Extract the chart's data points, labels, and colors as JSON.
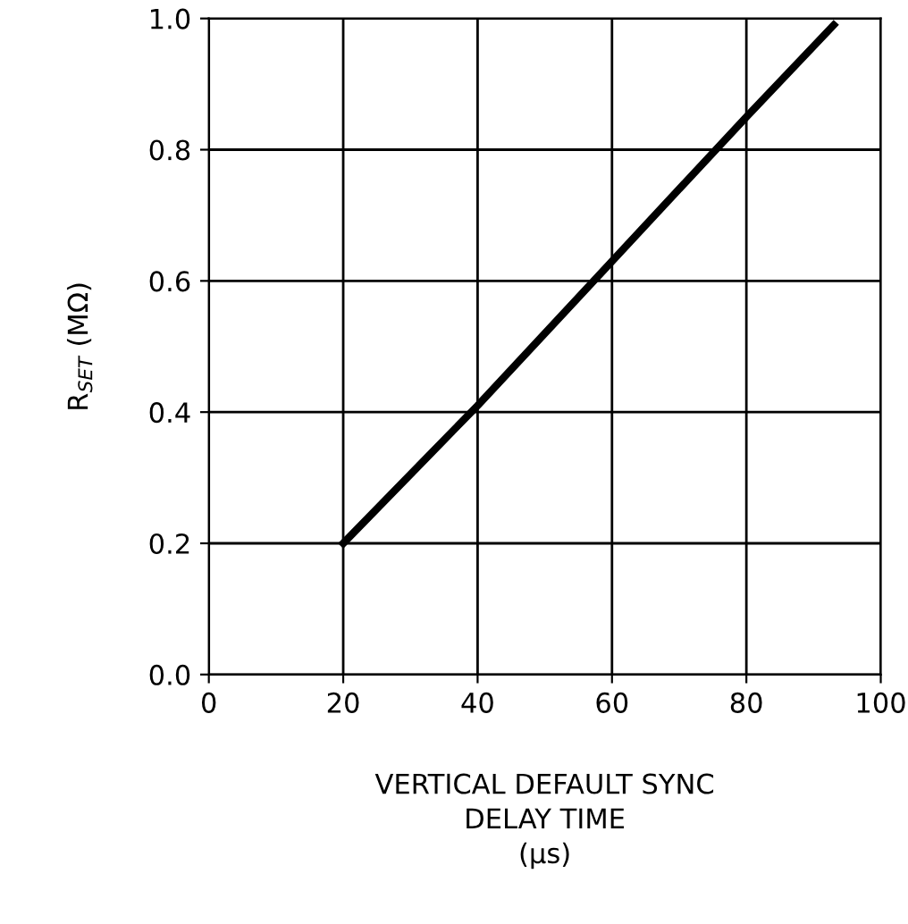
{
  "chart_data": {
    "type": "line",
    "x": [
      20,
      40,
      60,
      80,
      93
    ],
    "series": [
      {
        "color": "#000000",
        "values": [
          0.2,
          0.41,
          0.63,
          0.85,
          0.99
        ]
      }
    ],
    "xlabel": "VERTICAL DEFAULT SYNC\nDELAY TIME\n(μs)",
    "ylabel": "R$_{SET}$ (MΩ)",
    "xlim": [
      0,
      100
    ],
    "xticks": [
      0,
      20,
      40,
      60,
      80,
      100
    ],
    "ylim": [
      0,
      1
    ],
    "yticks": [
      {
        "value": 0,
        "label": "0.0"
      },
      {
        "value": 0.2,
        "label": "0.2"
      },
      {
        "value": 0.4,
        "label": "0.4"
      },
      {
        "value": 0.6,
        "label": "0.6"
      },
      {
        "value": 0.8,
        "label": "0.8"
      },
      {
        "value": 1,
        "label": "1.0"
      }
    ],
    "grid": true,
    "line_style": "solid"
  }
}
